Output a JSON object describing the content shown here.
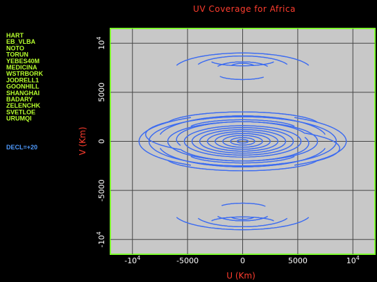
{
  "chart_data": {
    "type": "scatter",
    "title": "UV Coverage for Africa",
    "xlabel": "U (Km)",
    "ylabel": "V (Km)",
    "xlim": [
      -12000,
      12000
    ],
    "ylim": [
      -11500,
      11500
    ],
    "xticks": [
      {
        "value": -10000,
        "base": "-10",
        "exp": "4"
      },
      {
        "value": -5000,
        "label": "-5000"
      },
      {
        "value": 0,
        "label": "0"
      },
      {
        "value": 5000,
        "label": "5000"
      },
      {
        "value": 10000,
        "base": "10",
        "exp": "4"
      }
    ],
    "yticks": [
      {
        "value": 10000,
        "base": "10",
        "exp": "4"
      },
      {
        "value": 5000,
        "label": "5000"
      },
      {
        "value": 0,
        "label": "0"
      },
      {
        "value": -5000,
        "label": "-5000"
      },
      {
        "value": -10000,
        "base": "-10",
        "exp": "4"
      }
    ],
    "grid": true,
    "background": "#c8c8c8",
    "frame_color": "#7fff2e",
    "track_color": "#3d6cf0",
    "stations": [
      "HART",
      "EB_VLBA",
      "NOTO",
      "TORUN",
      "YEBES40M",
      "MEDICINA",
      "WSTRBORK",
      "JODRELL1",
      "GOONHILL",
      "SHANGHAI",
      "BADARY",
      "ZELENCHK",
      "SVETLOE",
      "URUMQI"
    ],
    "declination": "DECL=+20",
    "series": [
      {
        "tracks": [
          {
            "cu": 0,
            "cv": 7300,
            "a": 6200,
            "b": 1700,
            "t0": 15,
            "t1": 165
          },
          {
            "cu": 0,
            "cv": 7400,
            "a": 4300,
            "b": 1300,
            "t0": 20,
            "t1": 160
          },
          {
            "cu": 0,
            "cv": 7300,
            "a": 2500,
            "b": 800,
            "t0": 25,
            "t1": 155
          },
          {
            "cu": 0,
            "cv": 7500,
            "a": 1200,
            "b": 450,
            "t0": 30,
            "t1": 150
          },
          {
            "cu": 0,
            "cv": 8300,
            "a": 3000,
            "b": 600,
            "t0": 200,
            "t1": 340
          },
          {
            "cu": 0,
            "cv": 6800,
            "a": 2200,
            "b": 500,
            "t0": 200,
            "t1": 330
          },
          {
            "cu": 0,
            "cv": -7300,
            "a": 6200,
            "b": 1700,
            "t0": 195,
            "t1": 345
          },
          {
            "cu": 0,
            "cv": -7400,
            "a": 4300,
            "b": 1300,
            "t0": 200,
            "t1": 340
          },
          {
            "cu": 0,
            "cv": -7300,
            "a": 2500,
            "b": 800,
            "t0": 205,
            "t1": 335
          },
          {
            "cu": 0,
            "cv": -7500,
            "a": 1200,
            "b": 450,
            "t0": 210,
            "t1": 330
          },
          {
            "cu": 0,
            "cv": -8300,
            "a": 3000,
            "b": 600,
            "t0": 20,
            "t1": 160
          },
          {
            "cu": 0,
            "cv": -6800,
            "a": 2200,
            "b": 500,
            "t0": 30,
            "t1": 150
          },
          {
            "cu": 0,
            "cv": 0,
            "a": 9400,
            "b": 2800,
            "t0": -60,
            "t1": 60
          },
          {
            "cu": 0,
            "cv": 0,
            "a": 9400,
            "b": 2800,
            "t0": 120,
            "t1": 240
          },
          {
            "cu": 0,
            "cv": 0,
            "a": 8500,
            "b": 2500,
            "t0": 0,
            "t1": 180
          },
          {
            "cu": 0,
            "cv": 0,
            "a": 8500,
            "b": 2500,
            "t0": 180,
            "t1": 360
          },
          {
            "cu": 0,
            "cv": 300,
            "a": 7600,
            "b": 2300,
            "t0": 10,
            "t1": 170
          },
          {
            "cu": 0,
            "cv": -300,
            "a": 7600,
            "b": 2300,
            "t0": 190,
            "t1": 350
          },
          {
            "cu": 0,
            "cv": 0,
            "a": 6800,
            "b": 2000,
            "t0": 0,
            "t1": 360
          },
          {
            "cu": 0,
            "cv": 200,
            "a": 6000,
            "b": 1800,
            "t0": 20,
            "t1": 200
          },
          {
            "cu": 0,
            "cv": -200,
            "a": 6000,
            "b": 1800,
            "t0": 200,
            "t1": 380
          },
          {
            "cu": 0,
            "cv": 0,
            "a": 5300,
            "b": 1600,
            "t0": 0,
            "t1": 360
          },
          {
            "cu": 0,
            "cv": 0,
            "a": 4600,
            "b": 1400,
            "t0": 0,
            "t1": 360
          },
          {
            "cu": 0,
            "cv": 0,
            "a": 3900,
            "b": 1200,
            "t0": 0,
            "t1": 360
          },
          {
            "cu": 0,
            "cv": 0,
            "a": 3200,
            "b": 1000,
            "t0": 0,
            "t1": 360
          },
          {
            "cu": 0,
            "cv": 0,
            "a": 2500,
            "b": 800,
            "t0": 0,
            "t1": 360
          },
          {
            "cu": 0,
            "cv": 0,
            "a": 1800,
            "b": 600,
            "t0": 0,
            "t1": 360
          },
          {
            "cu": 0,
            "cv": 0,
            "a": 1100,
            "b": 380,
            "t0": 0,
            "t1": 360
          },
          {
            "cu": 0,
            "cv": 0,
            "a": 500,
            "b": 180,
            "t0": 0,
            "t1": 360
          },
          {
            "cu": 0,
            "cv": 1600,
            "a": 7000,
            "b": 1400,
            "t0": 15,
            "t1": 165
          },
          {
            "cu": 0,
            "cv": -1600,
            "a": 7000,
            "b": 1400,
            "t0": 195,
            "t1": 345
          },
          {
            "cu": 0,
            "cv": 1200,
            "a": 5000,
            "b": 1000,
            "t0": 20,
            "t1": 160
          },
          {
            "cu": 0,
            "cv": -1200,
            "a": 5000,
            "b": 1000,
            "t0": 200,
            "t1": 340
          },
          {
            "cu": 0,
            "cv": 700,
            "a": 8800,
            "b": 2000,
            "t0": 140,
            "t1": 230
          },
          {
            "cu": 0,
            "cv": -700,
            "a": 8800,
            "b": 2000,
            "t0": -40,
            "t1": 50
          },
          {
            "cu": 0,
            "cv": 0,
            "a": 7200,
            "b": 2600,
            "t0": 60,
            "t1": 120
          },
          {
            "cu": 0,
            "cv": 0,
            "a": 7200,
            "b": 2600,
            "t0": 240,
            "t1": 300
          }
        ]
      }
    ]
  }
}
